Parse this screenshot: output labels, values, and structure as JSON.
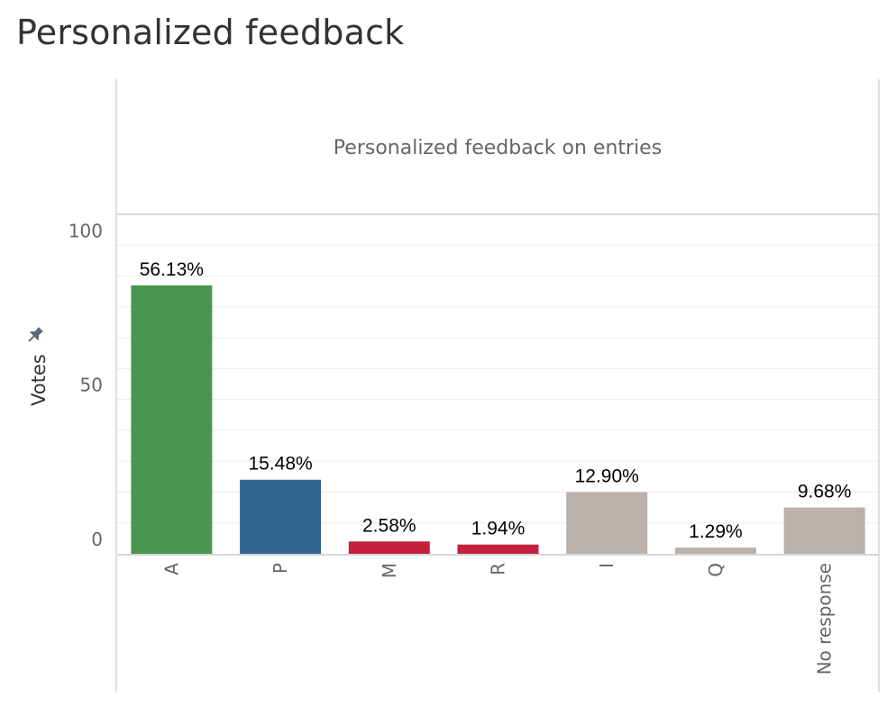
{
  "page": {
    "title": "Personalized feedback"
  },
  "chart_data": {
    "type": "bar",
    "title": "Personalized feedback on entries",
    "xlabel": "",
    "ylabel": "Votes",
    "ylim": [
      0,
      110
    ],
    "yticks": [
      0,
      50,
      100
    ],
    "grid": true,
    "categories": [
      "A",
      "P",
      "M",
      "R",
      "I",
      "Q",
      "No response"
    ],
    "values": [
      87,
      24,
      4,
      3,
      20,
      2,
      15
    ],
    "labels": [
      "56.13%",
      "15.48%",
      "2.58%",
      "1.94%",
      "12.90%",
      "1.29%",
      "9.68%"
    ],
    "colors": [
      "#4a9650",
      "#31658f",
      "#c4213f",
      "#c4213f",
      "#bab0ac",
      "#bab0ac",
      "#bab0ac"
    ],
    "ylabel_icon": "pin-icon"
  }
}
